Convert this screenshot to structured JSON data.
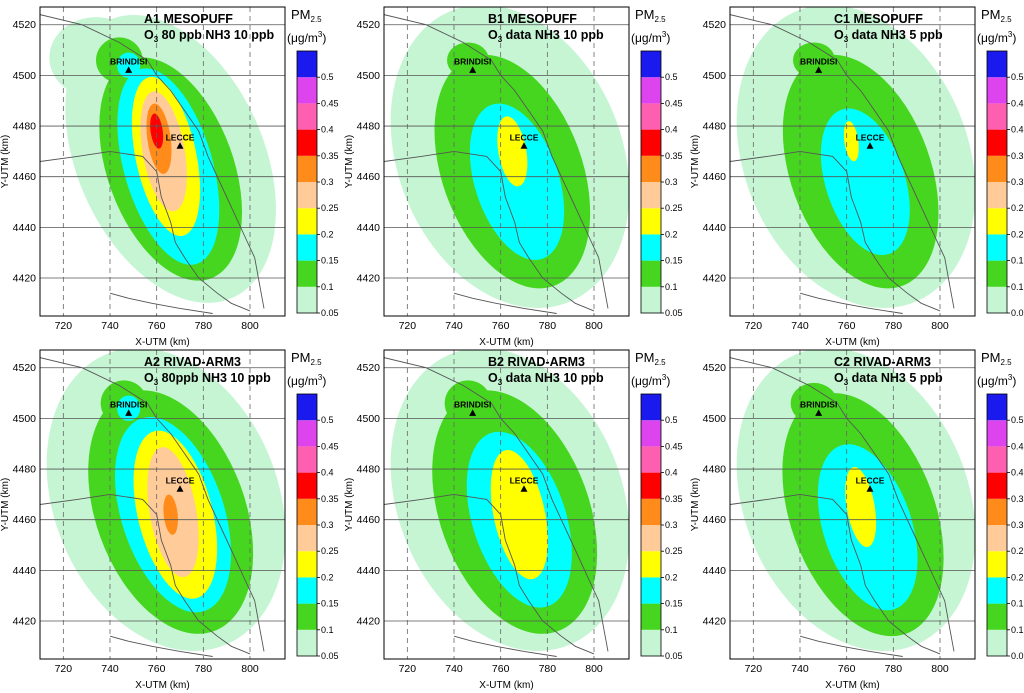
{
  "figure": {
    "colorbar_ticks": [
      "0.05",
      "0.1",
      "0.15",
      "0.2",
      "0.25",
      "0.3",
      "0.35",
      "0.4",
      "0.45",
      "0.5"
    ],
    "colorbar_colors": [
      "#c6f5d4",
      "#47d61f",
      "#00ffff",
      "#ffff00",
      "#ffcc99",
      "#ff8c1a",
      "#ff0000",
      "#ff5fb0",
      "#dd44ee",
      "#1a1aee"
    ],
    "city_labels": {
      "brindisi": "BRINDISI",
      "lecce": "LECCE"
    }
  },
  "chart_data": [
    {
      "type": "heatmap",
      "id": "A1",
      "title": "A1 MESOPUFF",
      "subtitle": "O",
      "subtitle_sub": "3",
      "subtitle_rest": " 80 ppb   NH3 10 ppb",
      "colorbar_title": "PM",
      "colorbar_title_sub": "2.5",
      "colorbar_unit": "(μg/m",
      "colorbar_unit_sup": "3",
      "colorbar_unit_end": ")",
      "xlabel": "X-UTM (km)",
      "ylabel": "Y-UTM (km)",
      "xlim": [
        710,
        815
      ],
      "ylim": [
        4405,
        4527
      ],
      "xticks": [
        "720",
        "740",
        "760",
        "780",
        "800"
      ],
      "yticks": [
        "4420",
        "4440",
        "4460",
        "4480",
        "4500",
        "4520"
      ],
      "levels": [
        0.05,
        0.1,
        0.15,
        0.2,
        0.25,
        0.3,
        0.35
      ],
      "max_level": 0.35,
      "peak_location": [
        760,
        4478
      ],
      "cities": [
        {
          "name": "BRINDISI",
          "x": 748,
          "y": 4502
        },
        {
          "name": "LECCE",
          "x": 770,
          "y": 4472
        }
      ]
    },
    {
      "type": "heatmap",
      "id": "B1",
      "title": "B1 MESOPUFF",
      "subtitle": "O",
      "subtitle_sub": "3",
      "subtitle_rest": " data   NH3 10 ppb",
      "colorbar_title": "PM",
      "colorbar_title_sub": "2.5",
      "colorbar_unit": "(μg/m",
      "colorbar_unit_sup": "3",
      "colorbar_unit_end": ")",
      "xlabel": "X-UTM (km)",
      "ylabel": "Y-UTM (km)",
      "xlim": [
        710,
        815
      ],
      "ylim": [
        4405,
        4527
      ],
      "xticks": [
        "720",
        "740",
        "760",
        "780",
        "800"
      ],
      "yticks": [
        "4420",
        "4440",
        "4460",
        "4480",
        "4500",
        "4520"
      ],
      "levels": [
        0.05,
        0.1,
        0.15,
        0.2
      ],
      "max_level": 0.2,
      "peak_location": [
        765,
        4470
      ],
      "cities": [
        {
          "name": "BRINDISI",
          "x": 748,
          "y": 4502
        },
        {
          "name": "LECCE",
          "x": 770,
          "y": 4472
        }
      ]
    },
    {
      "type": "heatmap",
      "id": "C1",
      "title": "C1 MESOPUFF",
      "subtitle": "O",
      "subtitle_sub": "3",
      "subtitle_rest": " data   NH3 5 ppb",
      "colorbar_title": "PM",
      "colorbar_title_sub": "2.5",
      "colorbar_unit": "(μg/m",
      "colorbar_unit_sup": "3",
      "colorbar_unit_end": ")",
      "xlabel": "X-UTM (km)",
      "ylabel": "Y-UTM (km)",
      "xlim": [
        710,
        815
      ],
      "ylim": [
        4405,
        4527
      ],
      "xticks": [
        "720",
        "740",
        "760",
        "780",
        "800"
      ],
      "yticks": [
        "4420",
        "4440",
        "4460",
        "4480",
        "4500",
        "4520"
      ],
      "levels": [
        0.05,
        0.1,
        0.15,
        0.2
      ],
      "max_level": 0.2,
      "peak_location": [
        762,
        4473
      ],
      "cities": [
        {
          "name": "BRINDISI",
          "x": 748,
          "y": 4502
        },
        {
          "name": "LECCE",
          "x": 770,
          "y": 4472
        }
      ]
    },
    {
      "type": "heatmap",
      "id": "A2",
      "title": "A2 RIVAD-ARM3",
      "subtitle": "O",
      "subtitle_sub": "3",
      "subtitle_rest": " 80ppb   NH3 10 ppb",
      "colorbar_title": "PM",
      "colorbar_title_sub": "2.5",
      "colorbar_unit": "(μg/m",
      "colorbar_unit_sup": "3",
      "colorbar_unit_end": ")",
      "xlabel": "X-UTM (km)",
      "ylabel": "Y-UTM (km)",
      "xlim": [
        710,
        815
      ],
      "ylim": [
        4405,
        4527
      ],
      "xticks": [
        "720",
        "740",
        "760",
        "780",
        "800"
      ],
      "yticks": [
        "4420",
        "4440",
        "4460",
        "4480",
        "4500",
        "4520"
      ],
      "levels": [
        0.05,
        0.1,
        0.15,
        0.2,
        0.25,
        0.3
      ],
      "max_level": 0.3,
      "peak_location": [
        766,
        4463
      ],
      "cities": [
        {
          "name": "BRINDISI",
          "x": 748,
          "y": 4502
        },
        {
          "name": "LECCE",
          "x": 770,
          "y": 4472
        }
      ]
    },
    {
      "type": "heatmap",
      "id": "B2",
      "title": "B2 RIVAD-ARM3",
      "subtitle": "O",
      "subtitle_sub": "3",
      "subtitle_rest": " data   NH3 10 ppb",
      "colorbar_title": "PM",
      "colorbar_title_sub": "2.5",
      "colorbar_unit": "(μg/m",
      "colorbar_unit_sup": "3",
      "colorbar_unit_end": ")",
      "xlabel": "X-UTM (km)",
      "ylabel": "Y-UTM (km)",
      "xlim": [
        710,
        815
      ],
      "ylim": [
        4405,
        4527
      ],
      "xticks": [
        "720",
        "740",
        "760",
        "780",
        "800"
      ],
      "yticks": [
        "4420",
        "4440",
        "4460",
        "4480",
        "4500",
        "4520"
      ],
      "levels": [
        0.05,
        0.1,
        0.15,
        0.2
      ],
      "max_level": 0.2,
      "peak_location": [
        768,
        4463
      ],
      "cities": [
        {
          "name": "BRINDISI",
          "x": 748,
          "y": 4502
        },
        {
          "name": "LECCE",
          "x": 770,
          "y": 4472
        }
      ]
    },
    {
      "type": "heatmap",
      "id": "C2",
      "title": "C2 RIVAD-ARM3",
      "subtitle": "O",
      "subtitle_sub": "3",
      "subtitle_rest": " data   NH3 5 ppb",
      "colorbar_title": "PM",
      "colorbar_title_sub": "2.5",
      "colorbar_unit": "(μg/m",
      "colorbar_unit_sup": "3",
      "colorbar_unit_end": ")",
      "xlabel": "X-UTM (km)",
      "ylabel": "Y-UTM (km)",
      "xlim": [
        710,
        815
      ],
      "ylim": [
        4405,
        4527
      ],
      "xticks": [
        "720",
        "740",
        "760",
        "780",
        "800"
      ],
      "yticks": [
        "4420",
        "4440",
        "4460",
        "4480",
        "4500",
        "4520"
      ],
      "levels": [
        0.05,
        0.1,
        0.15,
        0.2
      ],
      "max_level": 0.2,
      "peak_location": [
        765,
        4465
      ],
      "cities": [
        {
          "name": "BRINDISI",
          "x": 748,
          "y": 4502
        },
        {
          "name": "LECCE",
          "x": 770,
          "y": 4472
        }
      ]
    }
  ]
}
